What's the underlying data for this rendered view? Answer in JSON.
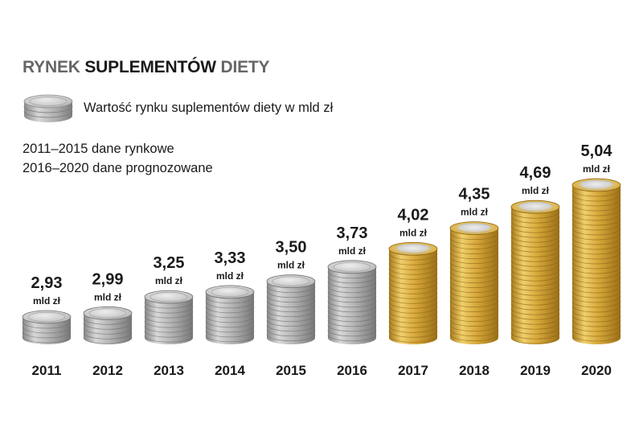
{
  "title": {
    "part1": "RYNEK",
    "part2": "SUPLEMENTÓW",
    "part3": "DIETY"
  },
  "legend": {
    "label": "Wartość rynku suplementów diety w mld zł"
  },
  "notes": [
    "2011–2015 dane rynkowe",
    "2016–2020 dane prognozowane"
  ],
  "colors": {
    "silver_coin": "#b8b8b8",
    "gold_coin": "#d9a935",
    "text": "#1a1a1a"
  },
  "chart_data": {
    "type": "bar",
    "categories": [
      "2011",
      "2012",
      "2013",
      "2014",
      "2015",
      "2016",
      "2017",
      "2018",
      "2019",
      "2020"
    ],
    "values": [
      2.93,
      2.99,
      3.25,
      3.33,
      3.5,
      3.73,
      4.02,
      4.35,
      4.69,
      5.04
    ],
    "value_labels": [
      "2,93",
      "2,99",
      "3,25",
      "3,33",
      "3,50",
      "3,73",
      "4,02",
      "4,35",
      "4,69",
      "5,04"
    ],
    "unit": "mld zł",
    "bar_style": [
      "silver",
      "silver",
      "silver",
      "silver",
      "silver",
      "silver",
      "gold",
      "gold",
      "gold",
      "gold"
    ],
    "ylim": [
      0,
      5.04
    ]
  }
}
